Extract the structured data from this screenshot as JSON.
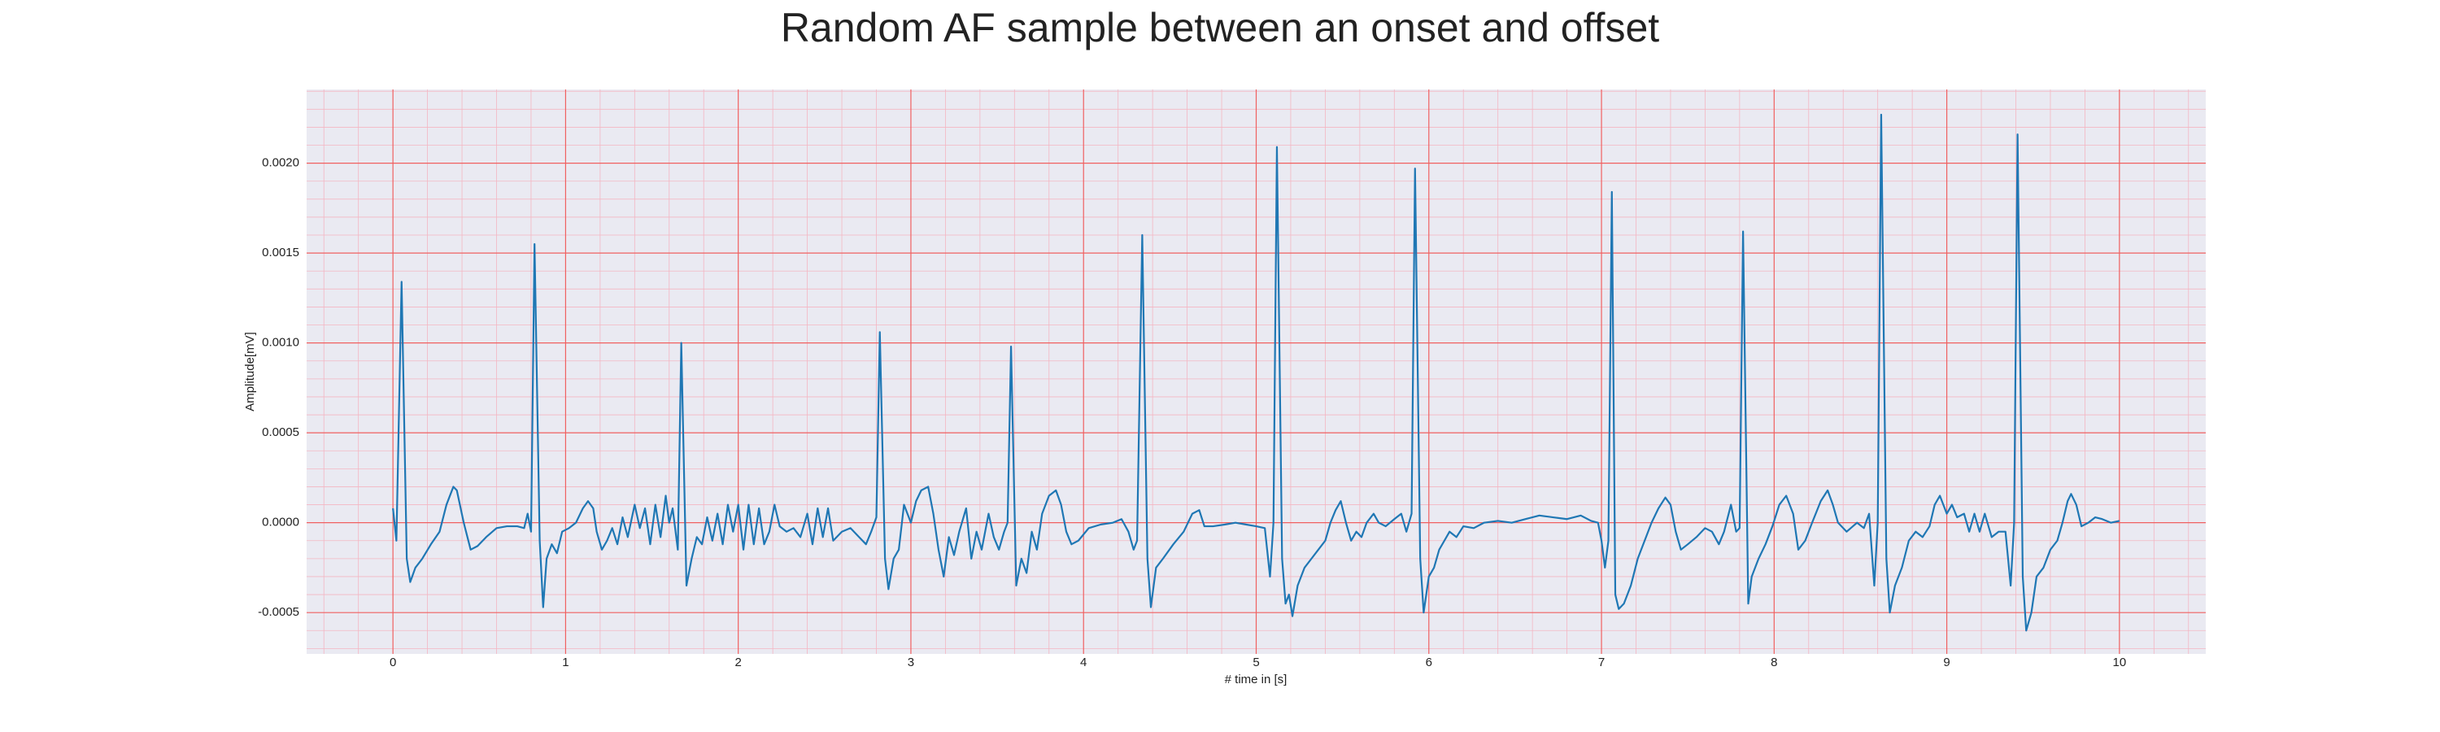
{
  "chart_data": {
    "type": "line",
    "title": "Random AF sample between an onset and offset",
    "xlabel": "# time in [s]",
    "ylabel": "Amplitude[mV]",
    "color": "#1f77b4",
    "grid": true,
    "xlim": [
      -0.5,
      10.5
    ],
    "ylim": [
      -0.00073,
      0.00241
    ],
    "xticks": [
      0,
      1,
      2,
      3,
      4,
      5,
      6,
      7,
      8,
      9,
      10
    ],
    "yticks": [
      {
        "value": -0.0005,
        "label": "-0.0005"
      },
      {
        "value": 0,
        "label": "0.0000"
      },
      {
        "value": 0.0005,
        "label": "0.0005"
      },
      {
        "value": 0.001,
        "label": "0.0010"
      },
      {
        "value": 0.0015,
        "label": "0.0015"
      },
      {
        "value": 0.002,
        "label": "0.0020"
      }
    ],
    "x": [
      0.0,
      0.02,
      0.05,
      0.08,
      0.1,
      0.13,
      0.17,
      0.22,
      0.27,
      0.31,
      0.35,
      0.37,
      0.41,
      0.45,
      0.49,
      0.54,
      0.6,
      0.66,
      0.72,
      0.76,
      0.78,
      0.8,
      0.82,
      0.85,
      0.87,
      0.89,
      0.92,
      0.95,
      0.98,
      1.02,
      1.06,
      1.1,
      1.13,
      1.16,
      1.18,
      1.21,
      1.24,
      1.27,
      1.3,
      1.33,
      1.36,
      1.4,
      1.43,
      1.46,
      1.49,
      1.52,
      1.55,
      1.58,
      1.6,
      1.62,
      1.65,
      1.67,
      1.7,
      1.73,
      1.76,
      1.79,
      1.82,
      1.85,
      1.88,
      1.91,
      1.94,
      1.97,
      2.0,
      2.03,
      2.06,
      2.09,
      2.12,
      2.15,
      2.18,
      2.21,
      2.24,
      2.28,
      2.32,
      2.36,
      2.4,
      2.43,
      2.46,
      2.49,
      2.52,
      2.55,
      2.6,
      2.65,
      2.7,
      2.74,
      2.77,
      2.8,
      2.82,
      2.85,
      2.87,
      2.9,
      2.93,
      2.96,
      3.0,
      3.03,
      3.06,
      3.1,
      3.13,
      3.16,
      3.19,
      3.22,
      3.25,
      3.28,
      3.32,
      3.35,
      3.38,
      3.41,
      3.45,
      3.48,
      3.51,
      3.54,
      3.56,
      3.58,
      3.61,
      3.64,
      3.67,
      3.7,
      3.73,
      3.76,
      3.8,
      3.84,
      3.87,
      3.9,
      3.93,
      3.97,
      4.03,
      4.1,
      4.17,
      4.22,
      4.26,
      4.29,
      4.31,
      4.34,
      4.37,
      4.39,
      4.42,
      4.46,
      4.52,
      4.58,
      4.63,
      4.67,
      4.7,
      4.75,
      4.82,
      4.88,
      4.94,
      5.0,
      5.05,
      5.08,
      5.1,
      5.12,
      5.15,
      5.17,
      5.19,
      5.21,
      5.24,
      5.28,
      5.32,
      5.36,
      5.4,
      5.43,
      5.46,
      5.49,
      5.52,
      5.55,
      5.58,
      5.61,
      5.64,
      5.68,
      5.71,
      5.75,
      5.8,
      5.84,
      5.87,
      5.9,
      5.92,
      5.95,
      5.97,
      6.0,
      6.03,
      6.06,
      6.09,
      6.12,
      6.16,
      6.2,
      6.26,
      6.32,
      6.4,
      6.48,
      6.56,
      6.64,
      6.72,
      6.8,
      6.88,
      6.94,
      6.98,
      7.0,
      7.02,
      7.04,
      7.06,
      7.08,
      7.1,
      7.13,
      7.17,
      7.21,
      7.25,
      7.29,
      7.33,
      7.37,
      7.4,
      7.43,
      7.46,
      7.5,
      7.55,
      7.6,
      7.64,
      7.68,
      7.71,
      7.75,
      7.78,
      7.8,
      7.82,
      7.85,
      7.87,
      7.91,
      7.95,
      7.99,
      8.03,
      8.07,
      8.11,
      8.14,
      8.18,
      8.22,
      8.27,
      8.31,
      8.34,
      8.37,
      8.42,
      8.48,
      8.52,
      8.55,
      8.58,
      8.6,
      8.62,
      8.65,
      8.67,
      8.7,
      8.74,
      8.78,
      8.82,
      8.86,
      8.9,
      8.93,
      8.96,
      9.0,
      9.03,
      9.06,
      9.1,
      9.13,
      9.16,
      9.19,
      9.22,
      9.26,
      9.3,
      9.34,
      9.37,
      9.39,
      9.41,
      9.44,
      9.46,
      9.49,
      9.52,
      9.56,
      9.6,
      9.64,
      9.67,
      9.7,
      9.72,
      9.75,
      9.78,
      9.82,
      9.86,
      9.9,
      9.95,
      10.0
    ],
    "values": [
      8e-05,
      -0.0001,
      0.00134,
      -0.0002,
      -0.00033,
      -0.00025,
      -0.0002,
      -0.00012,
      -5e-05,
      0.0001,
      0.0002,
      0.00018,
      0.0,
      -0.00015,
      -0.00013,
      -8e-05,
      -3e-05,
      -2e-05,
      -2e-05,
      -3e-05,
      5e-05,
      -5e-05,
      0.00155,
      -0.0001,
      -0.00047,
      -0.0002,
      -0.00012,
      -0.00017,
      -5e-05,
      -3e-05,
      0.0,
      8e-05,
      0.00012,
      8e-05,
      -5e-05,
      -0.00015,
      -0.0001,
      -3e-05,
      -0.00012,
      3e-05,
      -8e-05,
      0.0001,
      -3e-05,
      8e-05,
      -0.00012,
      0.0001,
      -8e-05,
      0.00015,
      0.0,
      8e-05,
      -0.00015,
      0.001,
      -0.00035,
      -0.0002,
      -8e-05,
      -0.00012,
      3e-05,
      -0.0001,
      5e-05,
      -0.00012,
      0.0001,
      -5e-05,
      0.0001,
      -0.00015,
      0.0001,
      -0.00012,
      8e-05,
      -0.00012,
      -5e-05,
      0.0001,
      -2e-05,
      -5e-05,
      -3e-05,
      -8e-05,
      5e-05,
      -0.00012,
      8e-05,
      -8e-05,
      8e-05,
      -0.0001,
      -5e-05,
      -3e-05,
      -8e-05,
      -0.00012,
      -5e-05,
      3e-05,
      0.00106,
      -0.0002,
      -0.00037,
      -0.0002,
      -0.00015,
      0.0001,
      0.0,
      0.00012,
      0.00018,
      0.0002,
      5e-05,
      -0.00015,
      -0.0003,
      -8e-05,
      -0.00018,
      -5e-05,
      8e-05,
      -0.0002,
      -5e-05,
      -0.00015,
      5e-05,
      -8e-05,
      -0.00015,
      -5e-05,
      0.0,
      0.00098,
      -0.00035,
      -0.0002,
      -0.00028,
      -5e-05,
      -0.00015,
      5e-05,
      0.00015,
      0.00018,
      0.0001,
      -5e-05,
      -0.00012,
      -0.0001,
      -3e-05,
      -1e-05,
      0.0,
      2e-05,
      -5e-05,
      -0.00015,
      -0.0001,
      0.0016,
      -0.0002,
      -0.00047,
      -0.00025,
      -0.0002,
      -0.00012,
      -5e-05,
      5e-05,
      7e-05,
      -2e-05,
      -2e-05,
      -1e-05,
      0.0,
      -1e-05,
      -2e-05,
      -3e-05,
      -0.0003,
      0.0,
      0.00209,
      -0.0002,
      -0.00045,
      -0.0004,
      -0.00052,
      -0.00035,
      -0.00025,
      -0.0002,
      -0.00015,
      -0.0001,
      0.0,
      7e-05,
      0.00012,
      0.0,
      -0.0001,
      -5e-05,
      -8e-05,
      0.0,
      5e-05,
      0.0,
      -2e-05,
      2e-05,
      5e-05,
      -5e-05,
      5e-05,
      0.00197,
      -0.0002,
      -0.0005,
      -0.0003,
      -0.00025,
      -0.00015,
      -0.0001,
      -5e-05,
      -8e-05,
      -2e-05,
      -3e-05,
      0.0,
      1e-05,
      0.0,
      2e-05,
      4e-05,
      3e-05,
      2e-05,
      4e-05,
      1e-05,
      0.0,
      -0.0001,
      -0.00025,
      -0.0001,
      0.00184,
      -0.0004,
      -0.00048,
      -0.00045,
      -0.00035,
      -0.0002,
      -0.0001,
      0.0,
      8e-05,
      0.00014,
      0.0001,
      -5e-05,
      -0.00015,
      -0.00012,
      -8e-05,
      -3e-05,
      -5e-05,
      -0.00012,
      -5e-05,
      0.0001,
      -5e-05,
      -3e-05,
      0.00162,
      -0.00045,
      -0.0003,
      -0.0002,
      -0.00012,
      -2e-05,
      0.0001,
      0.00015,
      5e-05,
      -0.00015,
      -0.0001,
      0.0,
      0.00012,
      0.00018,
      0.0001,
      0.0,
      -5e-05,
      0.0,
      -3e-05,
      5e-05,
      -0.00035,
      0.0,
      0.00227,
      -0.0002,
      -0.0005,
      -0.00035,
      -0.00025,
      -0.0001,
      -5e-05,
      -8e-05,
      -2e-05,
      0.0001,
      0.00015,
      5e-05,
      0.0001,
      3e-05,
      5e-05,
      -5e-05,
      5e-05,
      -5e-05,
      5e-05,
      -8e-05,
      -5e-05,
      -5e-05,
      -0.00035,
      0.0,
      0.00216,
      -0.0003,
      -0.0006,
      -0.0005,
      -0.0003,
      -0.00025,
      -0.00015,
      -0.0001,
      0.0,
      0.00012,
      0.00016,
      0.0001,
      -2e-05,
      0.0,
      3e-05,
      2e-05,
      0.0,
      1e-05
    ]
  }
}
